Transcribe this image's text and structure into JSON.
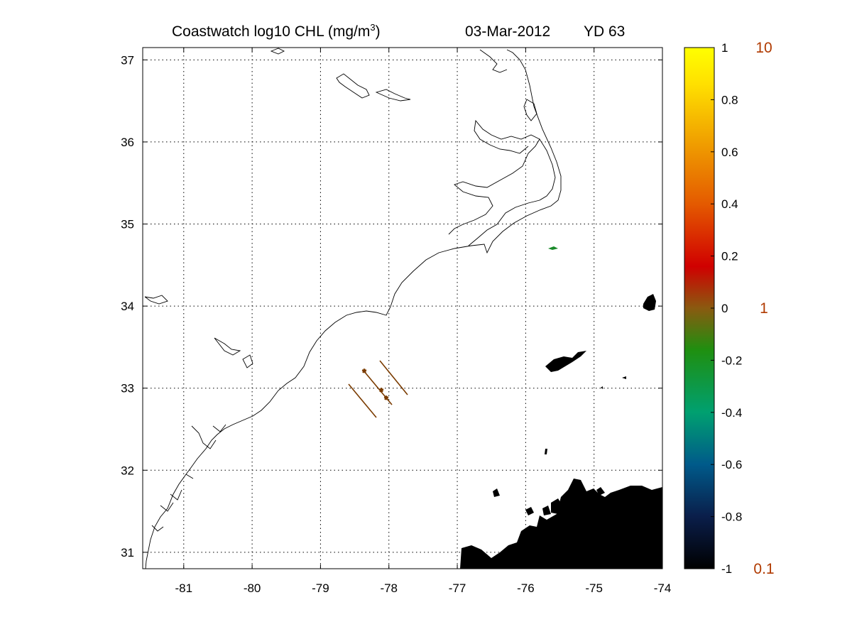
{
  "title": {
    "left": "Coastwatch  log10  CHL (mg/m",
    "superscript": "3",
    "close": ")",
    "date": "03-Mar-2012",
    "yd": "YD 63"
  },
  "map": {
    "lon_range": [
      -81.6,
      -74.0
    ],
    "lat_range": [
      30.8,
      37.15
    ],
    "x_ticks": [
      -81,
      -80,
      -79,
      -78,
      -77,
      -76,
      -75,
      -74
    ],
    "y_ticks": [
      31,
      32,
      33,
      34,
      35,
      36,
      37
    ],
    "x_tick_labels": [
      "-81",
      "-80",
      "-79",
      "-78",
      "-77",
      "-76",
      "-75",
      "-74"
    ],
    "y_tick_labels": [
      "31",
      "32",
      "33",
      "34",
      "35",
      "36",
      "37"
    ],
    "grid": "dotted",
    "colors": {
      "coastline": "#000000",
      "track": "#7a3b00",
      "cloud_mask": "#000000",
      "feature_green": "#1a8a2a"
    }
  },
  "colorbar": {
    "range": [
      -1,
      1
    ],
    "ticks": [
      1,
      0.8,
      0.6,
      0.4,
      0.2,
      0,
      -0.2,
      -0.4,
      -0.6,
      -0.8,
      -1
    ],
    "tick_labels": [
      "1",
      "0.8",
      "0.6",
      "0.4",
      "0.2",
      "0",
      "-0.2",
      "-0.4",
      "-0.6",
      "-0.8",
      "-1"
    ],
    "linear_labels": [
      {
        "value": 1,
        "label": "10"
      },
      {
        "value": 0,
        "label": "1"
      },
      {
        "value": -1,
        "label": "0.1"
      }
    ],
    "colormap": [
      "#000000",
      "#0a1e4a",
      "#005a8a",
      "#00a070",
      "#1f8f10",
      "#8a5a10",
      "#d00000",
      "#e45a00",
      "#f0a000",
      "#ffe000",
      "#ffff00"
    ]
  }
}
